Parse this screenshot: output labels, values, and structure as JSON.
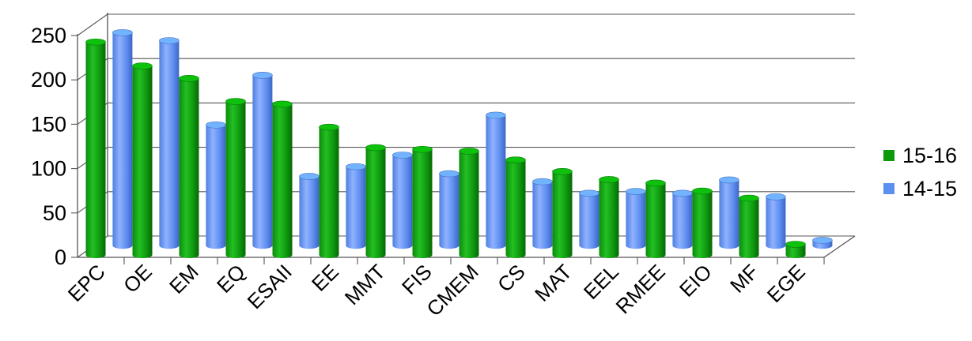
{
  "chart_data": {
    "type": "bar",
    "title": "",
    "xlabel": "",
    "ylabel": "",
    "ylim": [
      0,
      250
    ],
    "yticks": [
      0,
      50,
      100,
      150,
      200,
      250
    ],
    "grid": true,
    "legend_position": "right",
    "categories": [
      "EPC",
      "OE",
      "EM",
      "EQ",
      "ESAII",
      "EE",
      "MMT",
      "FIS",
      "CMEM",
      "CS",
      "MAT",
      "EEL",
      "RMEE",
      "EIO",
      "MF",
      "EGE"
    ],
    "series": [
      {
        "name": "15-16",
        "color": "#0a9a0a",
        "values": [
          240,
          213,
          199,
          173,
          170,
          144,
          121,
          119,
          117,
          107,
          94,
          85,
          81,
          72,
          64,
          12
        ]
      },
      {
        "name": "14-15",
        "color": "#5b8ff0",
        "values": [
          240,
          231,
          136,
          192,
          78,
          89,
          102,
          81,
          147,
          72,
          59,
          61,
          59,
          74,
          55,
          6
        ]
      }
    ]
  }
}
